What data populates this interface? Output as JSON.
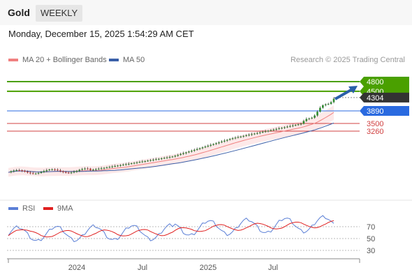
{
  "header": {
    "symbol": "Gold",
    "timeframe": "WEEKLY"
  },
  "datetime": "Monday, December 15, 2025 1:54:29 AM CET",
  "legend": {
    "ma20": {
      "label": "MA 20 + Bollinger Bands",
      "color": "#f08080"
    },
    "ma50": {
      "label": "MA 50",
      "color": "#3a5fa8"
    }
  },
  "credit": "Research © 2025 Trading Central",
  "rsi_legend": {
    "rsi": {
      "label": "RSI",
      "color": "#5b7fd6"
    },
    "ma": {
      "label": "9MA",
      "color": "#e02020"
    }
  },
  "chart_data": {
    "type": "line",
    "colors": {
      "target": "#4aa000",
      "current": "#333333",
      "support": "#2a6ae0",
      "resistance": "#d04040",
      "ma20": "#f08080",
      "ma50": "#3a5fa8",
      "arrow": "#2a5fa8",
      "up": "#2d8a2d",
      "down": "#c23a3a"
    },
    "levels": [
      {
        "label": "4800",
        "value": 4800,
        "kind": "target"
      },
      {
        "label": "4500",
        "value": 4500,
        "kind": "target"
      },
      {
        "label": "4304",
        "value": 4304,
        "kind": "current"
      },
      {
        "label": "3890",
        "value": 3890,
        "kind": "support"
      },
      {
        "label": "3500",
        "value": 3500,
        "kind": "resistance"
      },
      {
        "label": "3260",
        "value": 3260,
        "kind": "resistance"
      }
    ],
    "x_ticks": [
      "2024",
      "Jul",
      "2025",
      "Jul"
    ],
    "rsi_ticks": [
      "70",
      "50",
      "30"
    ],
    "arrow": {
      "from": 4260,
      "to": 4800
    }
  }
}
